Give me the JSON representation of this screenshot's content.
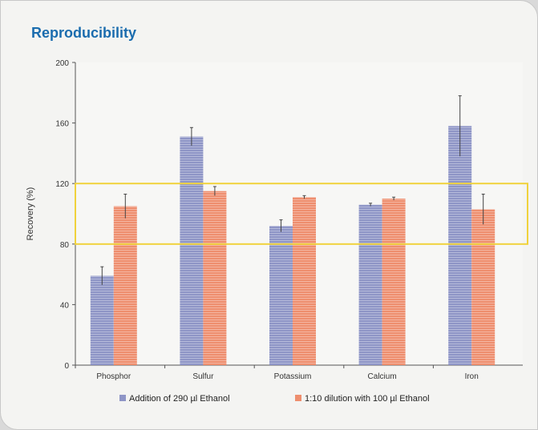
{
  "title": "Reproducibility",
  "chart_data": {
    "type": "bar",
    "categories": [
      "Phosphor",
      "Sulfur",
      "Potassium",
      "Calcium",
      "Iron"
    ],
    "series": [
      {
        "name": "Addition of 290 µl Ethanol",
        "values": [
          59,
          151,
          92,
          106,
          158
        ],
        "errors": [
          6,
          6,
          4,
          1,
          20
        ],
        "color": "#8e95c6"
      },
      {
        "name": "1:10 dilution with 100 µl Ethanol",
        "values": [
          105,
          115,
          111,
          110,
          103
        ],
        "errors": [
          8,
          3,
          1,
          1,
          10
        ],
        "color": "#ee8e6e"
      }
    ],
    "ylabel": "Recovery (%)",
    "xlabel": "",
    "ylim": [
      0,
      200
    ],
    "yticks": [
      0,
      40,
      80,
      120,
      160,
      200
    ],
    "band": {
      "low": 80,
      "high": 120,
      "color": "#f0d23c"
    },
    "grid": false,
    "legend_position": "bottom"
  }
}
